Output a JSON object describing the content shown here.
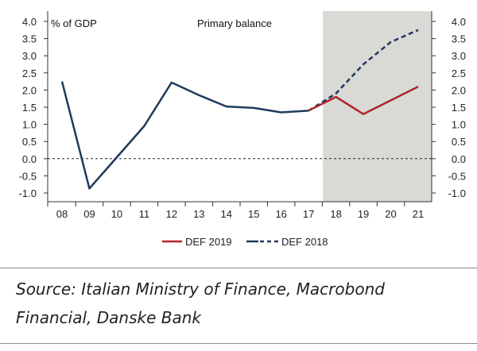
{
  "chart_data": {
    "type": "line",
    "title": "Primary balance",
    "ylabel": "% of GDP",
    "xlabel": "",
    "x_ticks": [
      "08",
      "09",
      "10",
      "11",
      "12",
      "13",
      "14",
      "15",
      "16",
      "17",
      "18",
      "19",
      "20",
      "21"
    ],
    "y_ticks": [
      "4.0",
      "3.5",
      "3.0",
      "2.5",
      "2.0",
      "1.5",
      "1.0",
      "0.5",
      "0.0",
      "-0.5",
      "-1.0"
    ],
    "ylim": [
      -1.0,
      4.0
    ],
    "forecast_shading_from": "17",
    "series": [
      {
        "name": "DEF 2018",
        "color": "#1f3a5c",
        "style": "solid then dashed",
        "solid_values": [
          {
            "x": 8,
            "y": 2.25
          },
          {
            "x": 9,
            "y": -0.87
          },
          {
            "x": 11,
            "y": 0.95
          },
          {
            "x": 12,
            "y": 2.22
          },
          {
            "x": 13,
            "y": 1.85
          },
          {
            "x": 14,
            "y": 1.52
          },
          {
            "x": 15,
            "y": 1.48
          },
          {
            "x": 16,
            "y": 1.35
          },
          {
            "x": 17,
            "y": 1.4
          }
        ],
        "dashed_values": [
          {
            "x": 17,
            "y": 1.4
          },
          {
            "x": 18,
            "y": 1.9
          },
          {
            "x": 19,
            "y": 2.75
          },
          {
            "x": 20,
            "y": 3.4
          },
          {
            "x": 21,
            "y": 3.75
          }
        ]
      },
      {
        "name": "DEF 2019",
        "color": "#b0232a",
        "style": "solid",
        "solid_values": [
          {
            "x": 17,
            "y": 1.4
          },
          {
            "x": 18,
            "y": 1.8
          },
          {
            "x": 19,
            "y": 1.3
          },
          {
            "x": 20,
            "y": 1.7
          },
          {
            "x": 21,
            "y": 2.1
          }
        ]
      }
    ],
    "legend": [
      "DEF 2019",
      "DEF 2018"
    ]
  },
  "source": {
    "line1": "Source: Italian Ministry of Finance, Macrobond",
    "line2": "Financial, Danske Bank"
  },
  "colors": {
    "shade": "#d9d9d5",
    "zero_line": "#222222",
    "axis": "#333333"
  }
}
